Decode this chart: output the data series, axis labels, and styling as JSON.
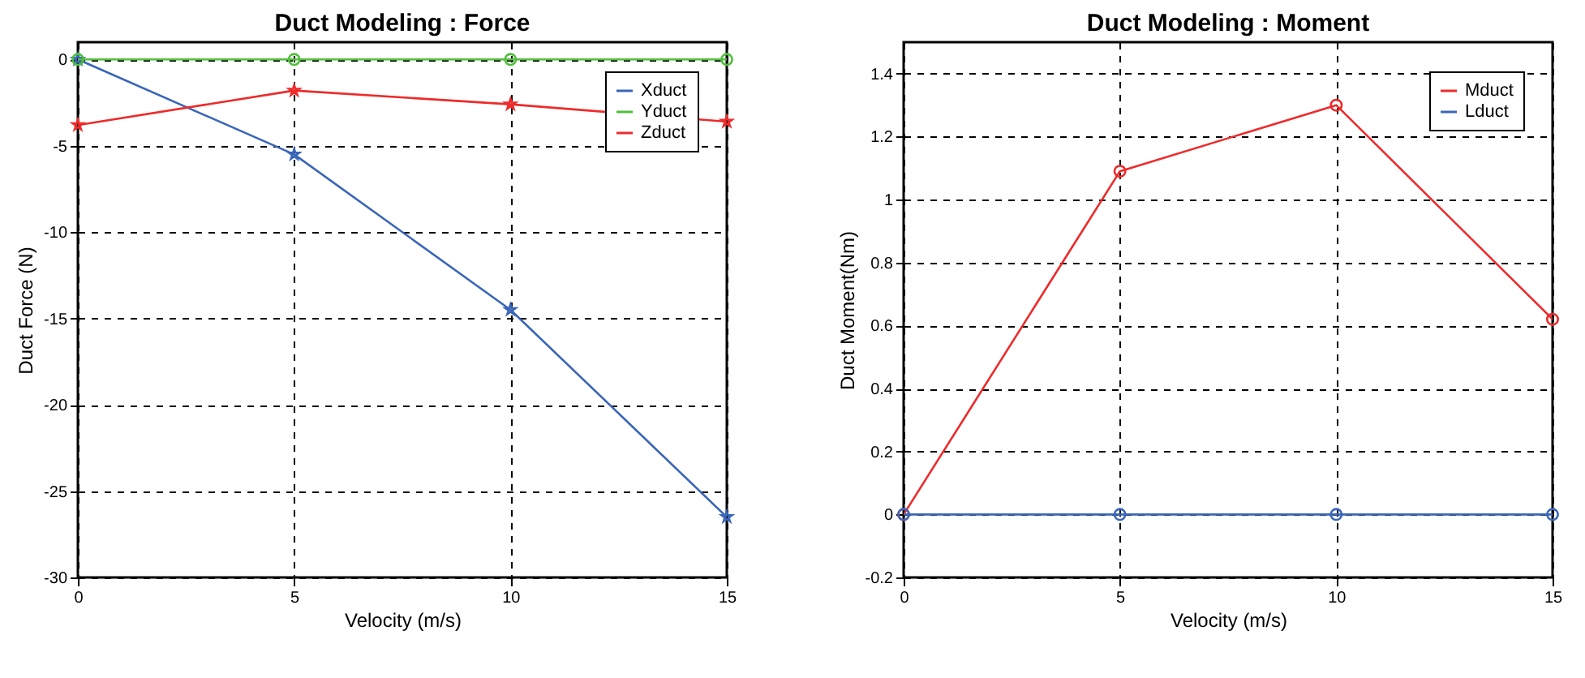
{
  "chart_data": [
    {
      "type": "line",
      "title": "Duct Modeling : Force",
      "xlabel": "Velocity (m/s)",
      "ylabel": "Duct Force (N)",
      "x": [
        0,
        5,
        10,
        15
      ],
      "xlim": [
        0,
        15
      ],
      "xticks": [
        0,
        5,
        10,
        15
      ],
      "ylim": [
        -30,
        1
      ],
      "yticks": [
        -30,
        -25,
        -20,
        -15,
        -10,
        -5,
        0
      ],
      "grid": true,
      "legend": "top right",
      "line_style": "solid",
      "series": [
        {
          "name": "Xduct",
          "color": "#3a66b8",
          "marker": "star",
          "values": [
            0,
            -5.5,
            -14.5,
            -26.5
          ]
        },
        {
          "name": "Yduct",
          "color": "#4fbf3a",
          "marker": "circle",
          "values": [
            0,
            0,
            0,
            0
          ]
        },
        {
          "name": "Zduct",
          "color": "#ee2a2a",
          "marker": "star",
          "values": [
            -3.8,
            -1.8,
            -2.6,
            -3.6
          ]
        }
      ]
    },
    {
      "type": "line",
      "title": "Duct Modeling : Moment",
      "xlabel": "Velocity (m/s)",
      "ylabel": "Duct Moment(Nm)",
      "x": [
        0,
        5,
        10,
        15
      ],
      "xlim": [
        0,
        15
      ],
      "xticks": [
        0,
        5,
        10,
        15
      ],
      "ylim": [
        -0.2,
        1.5
      ],
      "yticks": [
        -0.2,
        0,
        0.2,
        0.4,
        0.6,
        0.8,
        1,
        1.2,
        1.4
      ],
      "grid": true,
      "legend": "top right",
      "line_style": "solid",
      "series": [
        {
          "name": "Mduct",
          "color": "#ee2a2a",
          "marker": "circle",
          "values": [
            0,
            1.09,
            1.3,
            0.62
          ]
        },
        {
          "name": "Lduct",
          "color": "#3a66b8",
          "marker": "circle",
          "values": [
            0,
            0,
            0,
            0
          ]
        }
      ]
    }
  ]
}
